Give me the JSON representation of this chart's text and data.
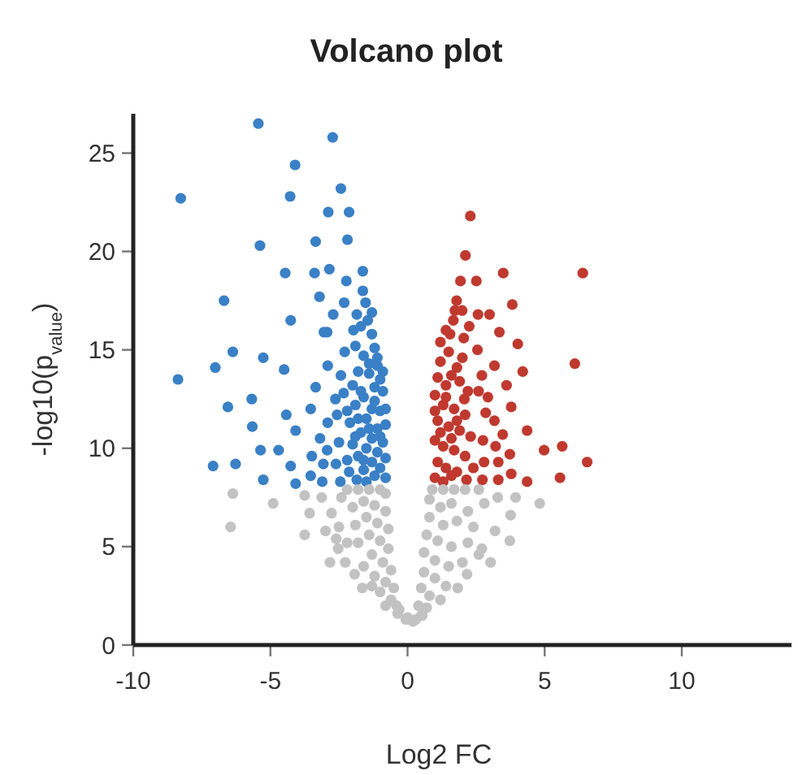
{
  "chart_data": {
    "type": "scatter",
    "title": "Volcano plot",
    "xlabel": "Log2 FC",
    "ylabel": "-log10(p$_{value}$)",
    "xlim": [
      -10,
      14
    ],
    "ylim": [
      0,
      27
    ],
    "xticks": [
      -10,
      -5,
      0,
      5,
      10
    ],
    "yticks": [
      0,
      5,
      10,
      15,
      20,
      25
    ],
    "grid": false,
    "marker": "circle",
    "series": [
      {
        "color": "#3a80c6",
        "x": [
          -5.44,
          -2.73,
          -4.1,
          -8.27,
          -4.28,
          -2.43,
          -2.89,
          -2.13,
          -5.38,
          -3.35,
          -2.19,
          -4.46,
          -3.39,
          -2.85,
          -1.63,
          -2.23,
          -1.63,
          -6.69,
          -3.21,
          -2.31,
          -1.53,
          -2.71,
          -4.26,
          -1.85,
          -1.45,
          -3.05,
          -2.93,
          -1.97,
          -6.37,
          -5.26,
          -2.29,
          -7.01,
          -4.5,
          -2.91,
          -8.37,
          -3.35,
          -2.43,
          -5.68,
          -6.55,
          -2.63,
          -2.33,
          -3.53,
          -4.42,
          -2.57,
          -5.66,
          -4.08,
          -2.91,
          -3.19,
          -2.5,
          -5.36,
          -4.7,
          -3.49,
          -2.93,
          -7.09,
          -6.27,
          -4.26,
          -3.53,
          -3.07,
          -2.61,
          -5.26,
          -4.08,
          -3.11,
          -2.45,
          -2.13,
          -1.85,
          -1.9,
          -1.6,
          -1.3,
          -1.1,
          -1.4,
          -1.8,
          -2.0,
          -1.2,
          -0.9,
          -1.6,
          -1.9,
          -1.3,
          -1.0,
          -1.5,
          -2.1,
          -1.1,
          -0.8,
          -1.7,
          -1.3,
          -0.9,
          -2.0,
          -1.5,
          -1.1,
          -0.8,
          -1.8,
          -1.3,
          -1.0,
          -1.6,
          -1.2,
          -0.8,
          -1.5,
          -2.2,
          -1.7,
          -1.3,
          -1.4,
          -1.0,
          -1.7,
          -1.2,
          -0.8,
          -1.4,
          -1.9,
          -1.0,
          -1.6,
          -1.2,
          -1.1,
          -0.9,
          -2.2,
          -1.8
        ],
        "values": [
          26.5,
          25.8,
          24.4,
          22.7,
          22.8,
          23.2,
          22.0,
          22.0,
          20.3,
          20.5,
          20.6,
          18.9,
          18.9,
          19.1,
          19.0,
          18.5,
          18.0,
          17.5,
          17.7,
          17.4,
          17.4,
          16.8,
          16.5,
          16.8,
          16.5,
          15.9,
          15.9,
          16.0,
          14.9,
          14.6,
          14.9,
          14.1,
          14.0,
          14.2,
          13.5,
          13.1,
          13.7,
          12.5,
          12.1,
          12.5,
          12.8,
          12.0,
          11.7,
          11.7,
          11.1,
          10.9,
          11.3,
          10.5,
          10.3,
          9.9,
          9.9,
          9.6,
          9.9,
          9.1,
          9.2,
          9.1,
          8.6,
          9.2,
          9.2,
          8.4,
          8.2,
          8.3,
          8.3,
          8.8,
          8.4,
          15.2,
          14.7,
          15.8,
          14.2,
          13.8,
          13.9,
          13.2,
          13.1,
          12.9,
          12.6,
          12.2,
          12.0,
          11.9,
          11.5,
          11.3,
          11.0,
          11.2,
          10.8,
          10.5,
          10.3,
          10.2,
          10.0,
          9.8,
          9.5,
          9.6,
          9.3,
          9.0,
          8.9,
          8.6,
          8.5,
          8.3,
          9.4,
          16.2,
          16.9,
          14.3,
          13.5,
          12.9,
          12.4,
          12.0,
          11.0,
          10.6,
          10.6,
          9.4,
          15.1,
          14.6,
          13.9,
          11.9,
          11.5
        ]
      },
      {
        "color": "#c0392f",
        "x": [
          2.29,
          2.11,
          1.93,
          2.51,
          3.49,
          6.39,
          1.79,
          3.82,
          1.73,
          1.99,
          2.57,
          2.99,
          1.67,
          2.25,
          3.35,
          1.55,
          2.05,
          4.02,
          2.55,
          6.1,
          3.17,
          4.2,
          2.71,
          3.61,
          2.59,
          2.93,
          2.07,
          3.78,
          2.85,
          3.17,
          4.36,
          3.47,
          2.75,
          4.98,
          5.64,
          3.21,
          3.73,
          6.55,
          2.79,
          3.31,
          3.78,
          5.56,
          4.36,
          2.73,
          3.31,
          2.15,
          1.2,
          1.5,
          1.8,
          1.1,
          1.4,
          1.9,
          2.2,
          1.0,
          1.3,
          1.7,
          2.1,
          1.1,
          1.5,
          1.9,
          2.3,
          1.0,
          1.3,
          1.7,
          2.1,
          1.1,
          1.4,
          1.8,
          1.0,
          1.3,
          1.6,
          2.4,
          1.2,
          1.6,
          1.4,
          1.2,
          1.6,
          2.0,
          1.4,
          1.0,
          1.8
        ],
        "values": [
          21.8,
          19.8,
          18.5,
          18.5,
          18.9,
          18.9,
          17.5,
          17.3,
          17.0,
          17.0,
          16.8,
          16.8,
          16.5,
          16.2,
          15.9,
          15.8,
          15.6,
          15.3,
          15.0,
          14.3,
          14.2,
          13.9,
          13.7,
          13.2,
          12.9,
          12.6,
          12.5,
          12.1,
          11.8,
          11.4,
          10.9,
          10.7,
          10.4,
          9.9,
          10.1,
          10.1,
          9.7,
          9.3,
          9.3,
          9.3,
          8.7,
          8.5,
          8.3,
          8.4,
          8.4,
          8.4,
          15.4,
          14.9,
          14.1,
          13.6,
          13.2,
          13.4,
          12.9,
          12.7,
          12.2,
          12.0,
          11.7,
          11.4,
          11.1,
          10.9,
          10.6,
          10.4,
          10.1,
          9.9,
          9.6,
          9.3,
          9.0,
          8.8,
          8.5,
          8.3,
          8.6,
          9.0,
          14.4,
          13.7,
          12.6,
          10.8,
          10.5,
          14.6,
          16.0,
          11.9,
          11.4
        ]
      },
      {
        "color": "#c2c2c2",
        "x": [
          -6.37,
          -6.45,
          -4.9,
          -3.75,
          -3.75,
          -3.57,
          -2.99,
          -2.83,
          -2.27,
          -1.93,
          -1.65,
          -3.13,
          -2.41,
          -2.77,
          -2.53,
          4.82,
          3.94,
          3.76,
          3.73,
          3.19,
          3.03,
          2.71,
          2.17,
          1.83,
          3.29,
          -2.2,
          -1.8,
          -1.4,
          -1.0,
          -0.8,
          -1.6,
          -2.0,
          -1.2,
          -0.8,
          -1.5,
          -1.9,
          -1.1,
          -0.7,
          -1.4,
          -1.8,
          -1.0,
          -0.7,
          -1.3,
          -1.6,
          -0.9,
          -0.6,
          -1.2,
          -0.8,
          -0.5,
          -1.0,
          -0.6,
          -0.4,
          -0.8,
          -2.5,
          -2.2,
          -2.6,
          -1.3,
          -0.3,
          0.0,
          0.9,
          1.3,
          1.7,
          2.1,
          2.6,
          0.8,
          1.2,
          1.6,
          2.2,
          2.8,
          0.8,
          1.3,
          1.8,
          2.4,
          0.7,
          1.1,
          1.6,
          2.2,
          2.6,
          0.6,
          1.0,
          1.5,
          2.0,
          0.6,
          1.0,
          1.4,
          0.5,
          0.8,
          1.2,
          0.4,
          0.7,
          0.5,
          0.3,
          0.2,
          -0.06,
          -0.36,
          0.54
        ],
        "values": [
          7.7,
          6.0,
          7.2,
          7.6,
          5.6,
          6.7,
          5.8,
          4.2,
          4.2,
          3.6,
          2.9,
          7.5,
          7.5,
          6.7,
          4.9,
          7.2,
          7.5,
          6.6,
          5.3,
          5.8,
          4.2,
          4.9,
          3.6,
          2.9,
          7.5,
          7.9,
          7.9,
          7.9,
          7.9,
          7.7,
          7.3,
          7.0,
          7.1,
          6.8,
          6.5,
          6.1,
          6.2,
          5.9,
          5.6,
          5.2,
          5.3,
          4.9,
          4.6,
          4.0,
          4.2,
          3.8,
          3.5,
          3.2,
          2.9,
          2.7,
          2.3,
          2.0,
          2.0,
          6.0,
          5.2,
          5.4,
          3.0,
          1.8,
          1.4,
          7.9,
          7.9,
          7.9,
          7.9,
          7.9,
          7.4,
          7.0,
          7.2,
          6.8,
          7.2,
          6.5,
          6.1,
          6.3,
          6.0,
          5.6,
          5.3,
          5.0,
          5.2,
          4.6,
          4.7,
          4.3,
          4.0,
          4.2,
          3.7,
          3.4,
          3.0,
          2.9,
          2.5,
          2.3,
          2.0,
          1.9,
          1.5,
          1.3,
          1.2,
          1.3,
          1.6,
          1.5
        ]
      }
    ]
  }
}
